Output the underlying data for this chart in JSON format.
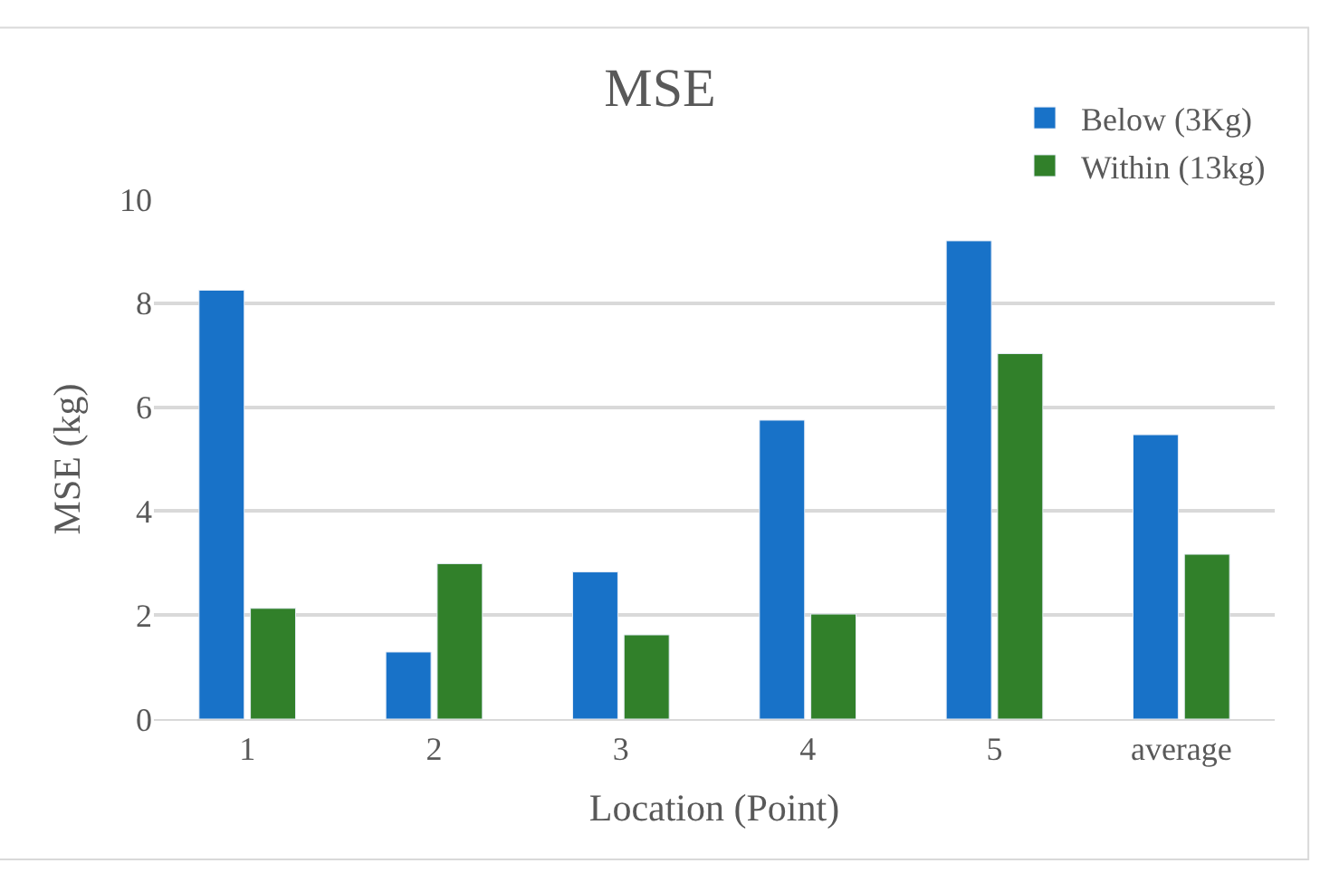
{
  "chart_data": {
    "type": "bar",
    "title": "MSE",
    "xlabel": "Location (Point)",
    "ylabel": "MSE (kg)",
    "categories": [
      "1",
      "2",
      "3",
      "4",
      "5",
      "average"
    ],
    "series": [
      {
        "name": "Below (3Kg)",
        "color": "#1872c8",
        "values": [
          8.25,
          1.29,
          2.83,
          5.75,
          9.2,
          5.47
        ]
      },
      {
        "name": "Within (13kg)",
        "color": "#31802a",
        "values": [
          2.13,
          2.99,
          1.62,
          2.02,
          7.03,
          3.17
        ]
      }
    ],
    "ylim": [
      0,
      10
    ],
    "yticks": [
      0,
      2,
      4,
      6,
      8,
      10
    ],
    "grid": "y",
    "legend": "top right"
  }
}
